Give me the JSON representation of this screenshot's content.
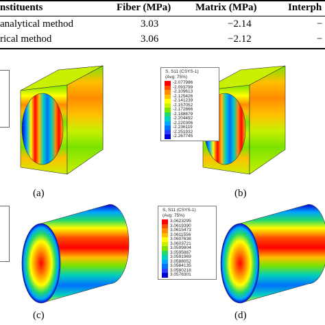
{
  "table": {
    "headers": [
      "nstituents",
      "Fiber (MPa)",
      "Matrix (MPa)",
      "Interph"
    ],
    "rows": [
      {
        "method": "analytical method",
        "fiber": "3.03",
        "matrix": "−2.14",
        "interphase": "−"
      },
      {
        "method": "rical method",
        "fiber": "3.06",
        "matrix": "−2.12",
        "interphase": "−"
      }
    ]
  },
  "panels": {
    "a": {
      "caption": "(a)"
    },
    "b": {
      "caption": "(b)",
      "legend_title": [
        "S, S11 (CSYS-1)",
        "(Avg: 75%)"
      ],
      "legend_values": [
        "-2.077986",
        "-2.093799",
        "-2.109613",
        "-2.125426",
        "-2.141239",
        "-2.157052",
        "-2.172866",
        "-2.188679",
        "-2.204492",
        "-2.220306",
        "-2.236119",
        "-2.251932",
        "-2.267745"
      ]
    },
    "c": {
      "caption": "(c)"
    },
    "d": {
      "caption": "(d)",
      "legend_title": [
        "S, S11 (CSYS-1)",
        "(Avg: 75%)"
      ],
      "legend_values": [
        "3.0623295",
        "3.0619390",
        "3.0615473",
        "3.0611556",
        "3.0607638",
        "3.0603721",
        "3.0599804",
        "3.0595887",
        "3.0591969",
        "3.0588052",
        "3.0584135",
        "3.0580218",
        "3.0576301"
      ]
    }
  },
  "colors": {
    "scale": [
      "#ff0000",
      "#ff4d00",
      "#ff8c00",
      "#ffbf00",
      "#ffff00",
      "#c8f000",
      "#7ae300",
      "#22d86a",
      "#00cfc0",
      "#00a6ff",
      "#0070ff",
      "#2a3cff",
      "#0000d0"
    ]
  }
}
